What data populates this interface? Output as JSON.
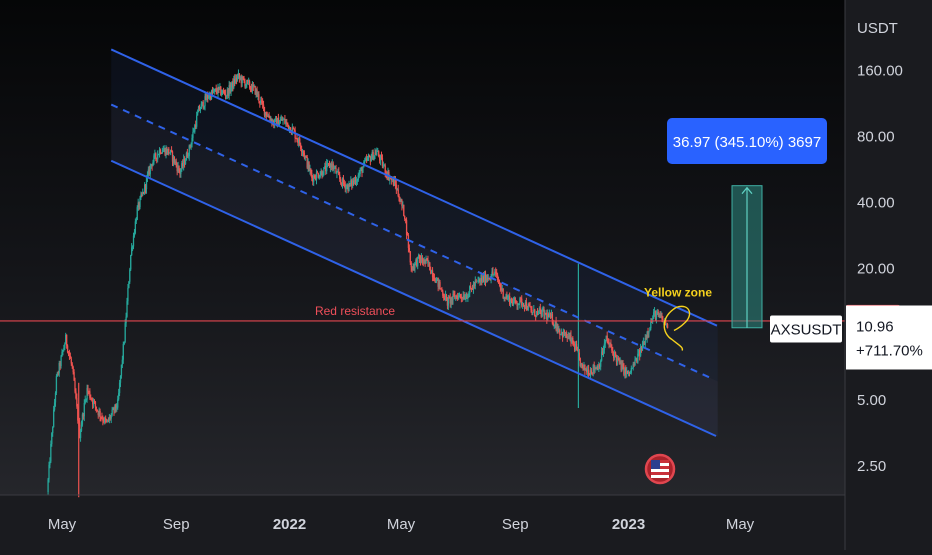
{
  "chart_data": {
    "type": "candlestick",
    "symbol": "AXSUSDT",
    "y_axis": {
      "unit_label": "USDT",
      "scale": "log",
      "tick_labels": [
        "160.00",
        "80.00",
        "40.00",
        "20.00",
        "5.00",
        "2.50"
      ],
      "tick_values": [
        160,
        80,
        40,
        20,
        5,
        2.5
      ]
    },
    "x_axis": {
      "tick_labels": [
        "May",
        "Sep",
        "2022",
        "May",
        "Sep",
        "2023",
        "May"
      ],
      "tick_dates": [
        "2021-05",
        "2021-09",
        "2022-01",
        "2022-05",
        "2022-09",
        "2023-01",
        "2023-05"
      ]
    },
    "current_price": {
      "label": "AXSUSDT",
      "value": "10.96",
      "change": "+711.70%",
      "value_num": 10.96
    },
    "resistance": {
      "label": "Red resistance",
      "value": 11.5
    },
    "zone_annotation": {
      "label": "Yellow zone"
    },
    "measure_box": {
      "label": "36.97 (345.10%) 3697",
      "from_price": 10.7,
      "to_price": 47.7
    },
    "channel": {
      "upper": [
        [
          "2021-06-23",
          200
        ],
        [
          "2023-04-07",
          10.9
        ]
      ],
      "middle": [
        [
          "2021-06-23",
          112
        ],
        [
          "2023-04-07",
          6.1
        ]
      ],
      "lower": [
        [
          "2021-06-23",
          62
        ],
        [
          "2023-04-07",
          3.4
        ]
      ]
    },
    "price_path": [
      [
        "2021-04-15",
        1.9
      ],
      [
        "2021-04-25",
        6.2
      ],
      [
        "2021-05-05",
        9.5
      ],
      [
        "2021-05-12",
        7.0
      ],
      [
        "2021-05-20",
        3.5
      ],
      [
        "2021-05-28",
        5.6
      ],
      [
        "2021-06-08",
        4.5
      ],
      [
        "2021-06-18",
        3.9
      ],
      [
        "2021-06-30",
        4.8
      ],
      [
        "2021-07-07",
        9.5
      ],
      [
        "2021-07-14",
        23
      ],
      [
        "2021-07-21",
        37
      ],
      [
        "2021-07-28",
        45
      ],
      [
        "2021-08-05",
        60
      ],
      [
        "2021-08-15",
        70
      ],
      [
        "2021-08-25",
        68
      ],
      [
        "2021-09-05",
        55
      ],
      [
        "2021-09-15",
        70
      ],
      [
        "2021-09-25",
        105
      ],
      [
        "2021-10-05",
        122
      ],
      [
        "2021-10-15",
        130
      ],
      [
        "2021-10-25",
        125
      ],
      [
        "2021-11-06",
        150
      ],
      [
        "2021-11-15",
        140
      ],
      [
        "2021-11-25",
        130
      ],
      [
        "2021-12-05",
        105
      ],
      [
        "2021-12-15",
        92
      ],
      [
        "2021-12-25",
        95
      ],
      [
        "2022-01-05",
        85
      ],
      [
        "2022-01-15",
        70
      ],
      [
        "2022-01-25",
        52
      ],
      [
        "2022-02-05",
        55
      ],
      [
        "2022-02-15",
        60
      ],
      [
        "2022-02-25",
        50
      ],
      [
        "2022-03-05",
        47
      ],
      [
        "2022-03-15",
        52
      ],
      [
        "2022-03-25",
        62
      ],
      [
        "2022-04-05",
        68
      ],
      [
        "2022-04-15",
        55
      ],
      [
        "2022-04-25",
        48
      ],
      [
        "2022-05-05",
        35
      ],
      [
        "2022-05-12",
        20
      ],
      [
        "2022-05-20",
        22
      ],
      [
        "2022-05-30",
        21
      ],
      [
        "2022-06-10",
        17
      ],
      [
        "2022-06-20",
        14
      ],
      [
        "2022-06-30",
        15
      ],
      [
        "2022-07-10",
        15
      ],
      [
        "2022-07-20",
        17
      ],
      [
        "2022-07-30",
        18
      ],
      [
        "2022-08-10",
        19
      ],
      [
        "2022-08-20",
        15
      ],
      [
        "2022-08-30",
        14
      ],
      [
        "2022-09-10",
        14
      ],
      [
        "2022-09-20",
        12.5
      ],
      [
        "2022-09-30",
        12.5
      ],
      [
        "2022-10-10",
        11.8
      ],
      [
        "2022-10-20",
        10.2
      ],
      [
        "2022-10-30",
        9.5
      ],
      [
        "2022-11-05",
        8.6
      ],
      [
        "2022-11-12",
        7.0
      ],
      [
        "2022-11-20",
        6.8
      ],
      [
        "2022-11-30",
        7.2
      ],
      [
        "2022-12-08",
        9.5
      ],
      [
        "2022-12-15",
        8.3
      ],
      [
        "2022-12-25",
        7.0
      ],
      [
        "2023-01-01",
        6.5
      ],
      [
        "2023-01-08",
        7.4
      ],
      [
        "2023-01-15",
        8.6
      ],
      [
        "2023-01-22",
        10.5
      ],
      [
        "2023-01-29",
        12.4
      ],
      [
        "2023-02-05",
        11.8
      ],
      [
        "2023-02-12",
        10.96
      ]
    ],
    "spikes": [
      {
        "date": "2021-05-19",
        "low": 1.8,
        "high": 6.0
      },
      {
        "date": "2022-11-08",
        "low": 4.6,
        "high": 21
      }
    ]
  }
}
